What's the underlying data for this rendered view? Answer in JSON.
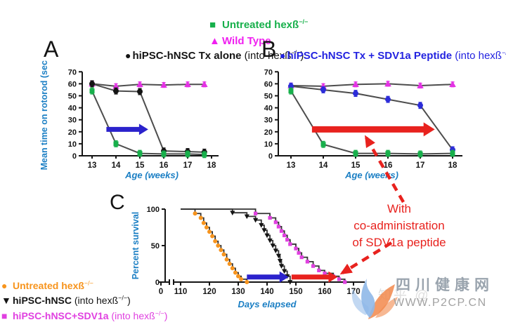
{
  "colors": {
    "axis_text": "#1B7FC4",
    "curve_line": "#4D4D4D",
    "red": "#E8221E",
    "blue_arrow": "#2B22CC"
  },
  "legend_top": {
    "items": [
      {
        "glyph": "■",
        "color": "#17B04B",
        "b": "Untreated hexß",
        "n1": "",
        "s": "−/−",
        "n2": ""
      },
      {
        "glyph": "▲",
        "color": "#F020F0",
        "b": "Wild Type",
        "n1": "",
        "s": "",
        "n2": ""
      }
    ]
  },
  "panel_a": {
    "label": "A",
    "bullet": "●",
    "bullet_color": "#141414",
    "text_color": "#141414",
    "b": "hiPSC-hNSC Tx alone",
    "n1": " (into hexß",
    "s": "−/−",
    "n2": ")"
  },
  "panel_b": {
    "label": "B",
    "bullet": "●",
    "bullet_color": "#2323E0",
    "text_color": "#2323E0",
    "b": "hiPSC-hNSC Tx + SDV1a Peptide",
    "n1": " (into hexß",
    "s": "−/−",
    "n2": ")"
  },
  "panel_c": {
    "label": "C"
  },
  "annotation": {
    "color": "#E8221E",
    "line1": "With",
    "line2": "co-administration",
    "line3": "of SDV1a peptide"
  },
  "legend_bottom": {
    "items": [
      {
        "glyph": "●",
        "color": "#F7941D",
        "b": "Untreated hexß",
        "n1": "",
        "s": "−/−",
        "n2": ""
      },
      {
        "glyph": "▼",
        "color": "#141414",
        "b": "hiPSC-hNSC",
        "n1": " (into hexß",
        "s": "−/−",
        "n2": ")"
      },
      {
        "glyph": "■",
        "color": "#E040E0",
        "b": "hiPSC-hNSC+SDV1a",
        "n1": " (into hexß",
        "s": "−/−",
        "n2": ")"
      }
    ]
  },
  "watermark": {
    "site_name": "四川健康网",
    "url": "WWW.P2CP.CN",
    "faint": "知乎 @",
    "text_color": "#9AA4AE",
    "phoenix_blue": "#8FB8E8",
    "phoenix_orange": "#F2884B"
  },
  "chart_data": [
    {
      "id": "A",
      "type": "line",
      "title": "hiPSC-hNSC Tx alone (into hexß−/−)",
      "xlabel": "Age (weeks)",
      "ylabel": "Mean time on rotorod (sec)",
      "x": [
        13,
        14,
        15,
        16,
        17,
        17.7
      ],
      "xticks": [
        13,
        14,
        15,
        16,
        17,
        18
      ],
      "ylim": [
        0,
        70
      ],
      "yticks": [
        0,
        10,
        20,
        30,
        40,
        50,
        60,
        70
      ],
      "grid": false,
      "series": [
        {
          "name": "Wild Type",
          "marker": "triangle-up",
          "color": "#E431E4",
          "err": 2,
          "values": [
            60,
            58,
            59.5,
            59,
            59.5,
            59.5
          ]
        },
        {
          "name": "hiPSC-hNSC Tx alone",
          "marker": "circle",
          "color": "#141414",
          "err": 2.5,
          "values": [
            60,
            54,
            53.5,
            4,
            3.5,
            3
          ]
        },
        {
          "name": "Untreated hexß−/−",
          "marker": "square",
          "color": "#17B04B",
          "err": 2.5,
          "values": [
            54,
            10,
            2,
            1.5,
            1.5,
            1
          ]
        }
      ],
      "arrows": [
        {
          "color": "#2B22CC",
          "x1": 13.6,
          "x2": 15.35,
          "y": 22
        }
      ]
    },
    {
      "id": "B",
      "type": "line",
      "title": "hiPSC-hNSC Tx + SDV1a Peptide (into hexß−/−)",
      "xlabel": "Age (weeks)",
      "ylabel": "",
      "x": [
        13,
        14,
        15,
        16,
        17,
        18
      ],
      "xticks": [
        13,
        14,
        15,
        16,
        17,
        18
      ],
      "ylim": [
        0,
        70
      ],
      "yticks": [
        0,
        10,
        20,
        30,
        40,
        50,
        60,
        70
      ],
      "grid": false,
      "series": [
        {
          "name": "Wild Type",
          "marker": "triangle-up",
          "color": "#E431E4",
          "err": 2,
          "values": [
            58.5,
            58,
            59.5,
            60,
            58.5,
            59.5
          ]
        },
        {
          "name": "hiPSC-hNSC Tx + SDV1a Peptide",
          "marker": "circle",
          "color": "#2C2CD9",
          "err": 2.5,
          "values": [
            58,
            55,
            52,
            47,
            42,
            5
          ]
        },
        {
          "name": "Untreated hexß−/−",
          "marker": "square",
          "color": "#17B04B",
          "err": 2.5,
          "values": [
            54,
            9.5,
            2,
            2,
            1.5,
            2
          ]
        }
      ],
      "arrows": [
        {
          "color": "#E8221E",
          "x1": 13.65,
          "x2": 17.45,
          "y": 22
        }
      ]
    },
    {
      "id": "C",
      "type": "step",
      "title": "",
      "xlabel": "Days elapsed",
      "ylabel": "Percent survival",
      "zero_tick": "0",
      "axis_break": true,
      "xticks": [
        110,
        120,
        130,
        140,
        150,
        160,
        170
      ],
      "ylim": [
        0,
        100
      ],
      "yticks": [
        0,
        50,
        100
      ],
      "grid": false,
      "series": [
        {
          "name": "Untreated hexß−/−",
          "marker": "circle",
          "color": "#F7941D",
          "start": 110,
          "events": [
            [
              115,
              94
            ],
            [
              117,
              88
            ],
            [
              118,
              81
            ],
            [
              119,
              75
            ],
            [
              120,
              69
            ],
            [
              121,
              63
            ],
            [
              122,
              56
            ],
            [
              123,
              50
            ],
            [
              124,
              44
            ],
            [
              125,
              38
            ],
            [
              126,
              31
            ],
            [
              127,
              25
            ],
            [
              128,
              19
            ],
            [
              129,
              13
            ],
            [
              130,
              8
            ],
            [
              131,
              4
            ],
            [
              133,
              0
            ]
          ]
        },
        {
          "name": "hiPSC-hNSC",
          "marker": "triangle-down",
          "color": "#141414",
          "start": 110,
          "events": [
            [
              128,
              95
            ],
            [
              133,
              90
            ],
            [
              136,
              85
            ],
            [
              138,
              78
            ],
            [
              139,
              71
            ],
            [
              140,
              64
            ],
            [
              141,
              57
            ],
            [
              142,
              50
            ],
            [
              143,
              43
            ],
            [
              144,
              36
            ],
            [
              144.5,
              29
            ],
            [
              145,
              22
            ],
            [
              146,
              15
            ],
            [
              147,
              8
            ],
            [
              148,
              0
            ]
          ]
        },
        {
          "name": "hiPSC-hNSC+SDV1a",
          "marker": "square",
          "color": "#E040E0",
          "start": 110,
          "events": [
            [
              136,
              94
            ],
            [
              141,
              88
            ],
            [
              143,
              82
            ],
            [
              144,
              76
            ],
            [
              145,
              70
            ],
            [
              146,
              64
            ],
            [
              147,
              58
            ],
            [
              148,
              52
            ],
            [
              150,
              46
            ],
            [
              151,
              40
            ],
            [
              152,
              34
            ],
            [
              154,
              28
            ],
            [
              156,
              22
            ],
            [
              158,
              16
            ],
            [
              160,
              12
            ],
            [
              163,
              8
            ],
            [
              165,
              4
            ],
            [
              167,
              0
            ]
          ]
        }
      ],
      "arrows": [
        {
          "color": "#2B22CC",
          "x1": 133,
          "x2": 147.5,
          "y": 7
        },
        {
          "color": "#E8221E",
          "x1": 148.5,
          "x2": 164.5,
          "y": 7
        }
      ]
    }
  ]
}
